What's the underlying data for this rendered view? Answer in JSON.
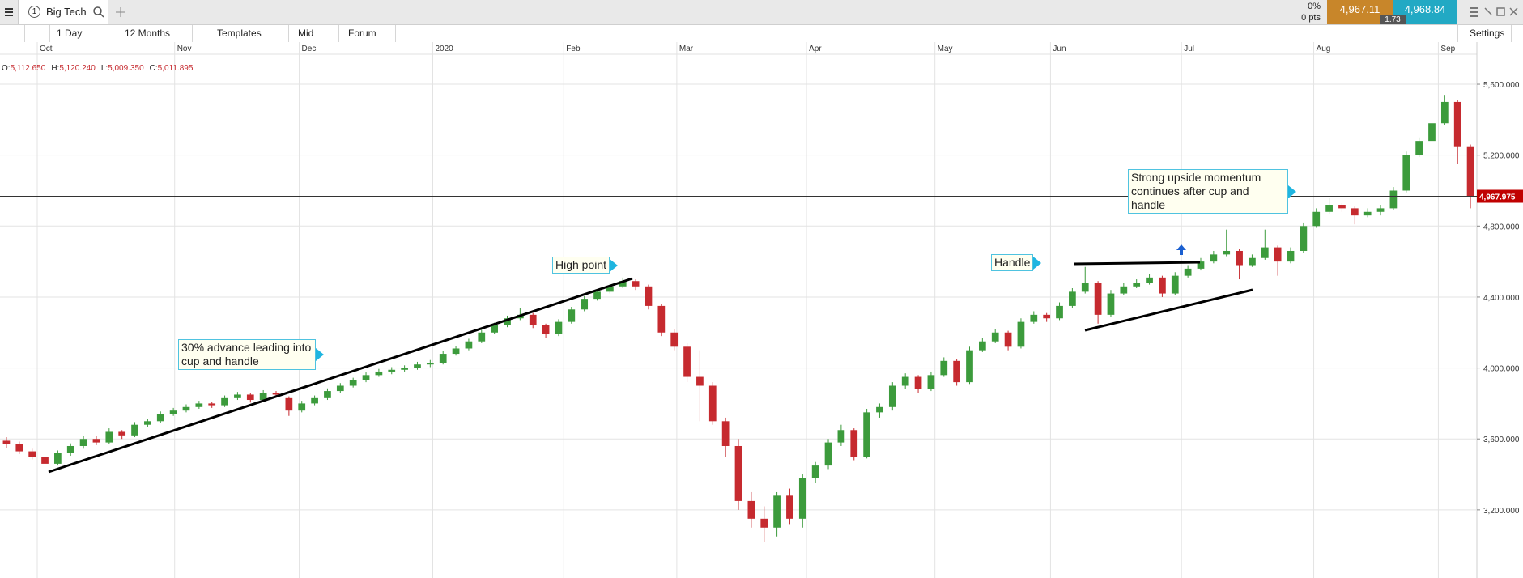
{
  "toolbar": {
    "tab_number": "1",
    "tab_title": "Big Tech",
    "change_pct": "0%",
    "change_pts": "0 pts",
    "sell": "4,967.11",
    "spread": "1.73",
    "buy": "4,968.84",
    "interval": "1 Day",
    "range": "12 Months",
    "templates": "Templates",
    "price_type": "Mid",
    "forum": "Forum",
    "settings": "Settings"
  },
  "ohlc_header": [
    {
      "label": "O:",
      "value": "5,112.650"
    },
    {
      "label": "H:",
      "value": "5,120.240"
    },
    {
      "label": "L:",
      "value": "5,009.350"
    },
    {
      "label": "C:",
      "value": "5,011.895"
    }
  ],
  "chart_data": {
    "type": "candlestick",
    "up_color": "#3c9b3c",
    "down_color": "#c62a2f",
    "grid": true,
    "xlim": [
      -0.5,
      114.5
    ],
    "xticks": [
      {
        "value": 2.4,
        "label": "Oct"
      },
      {
        "value": 13.1,
        "label": "Nov"
      },
      {
        "value": 22.8,
        "label": "Dec"
      },
      {
        "value": 33.2,
        "label": "2020"
      },
      {
        "value": 43.4,
        "label": "Feb"
      },
      {
        "value": 52.2,
        "label": "Mar"
      },
      {
        "value": 62.3,
        "label": "Apr"
      },
      {
        "value": 72.3,
        "label": "May"
      },
      {
        "value": 81.3,
        "label": "Jun"
      },
      {
        "value": 91.5,
        "label": "Jul"
      },
      {
        "value": 101.8,
        "label": "Aug"
      },
      {
        "value": 111.5,
        "label": "Sep"
      }
    ],
    "ylim": [
      2816,
      5769
    ],
    "yticks": [
      {
        "value": 3200,
        "label": "3,200.000"
      },
      {
        "value": 3600,
        "label": "3,600.000"
      },
      {
        "value": 4000,
        "label": "4,000.000"
      },
      {
        "value": 4400,
        "label": "4,400.000"
      },
      {
        "value": 4800,
        "label": "4,800.000"
      },
      {
        "value": 5200,
        "label": "5,200.000"
      },
      {
        "value": 5600,
        "label": "5,600.000"
      }
    ],
    "last_price": {
      "value": 4967.975,
      "label": "4,967.975"
    },
    "annotations": [
      "30% advance leading into cup and handle",
      "High point",
      "Handle",
      "Strong upside momentum continues after cup and handle"
    ],
    "ohlc": [
      [
        3590,
        3610,
        3550,
        3570
      ],
      [
        3570,
        3585,
        3515,
        3530
      ],
      [
        3530,
        3545,
        3485,
        3500
      ],
      [
        3500,
        3510,
        3430,
        3460
      ],
      [
        3460,
        3535,
        3450,
        3520
      ],
      [
        3520,
        3575,
        3505,
        3560
      ],
      [
        3560,
        3615,
        3545,
        3600
      ],
      [
        3600,
        3615,
        3565,
        3580
      ],
      [
        3580,
        3660,
        3570,
        3640
      ],
      [
        3640,
        3650,
        3600,
        3620
      ],
      [
        3620,
        3695,
        3610,
        3680
      ],
      [
        3680,
        3715,
        3665,
        3700
      ],
      [
        3700,
        3755,
        3690,
        3740
      ],
      [
        3740,
        3775,
        3730,
        3760
      ],
      [
        3760,
        3795,
        3750,
        3780
      ],
      [
        3780,
        3815,
        3770,
        3800
      ],
      [
        3800,
        3810,
        3775,
        3790
      ],
      [
        3790,
        3845,
        3780,
        3830
      ],
      [
        3830,
        3865,
        3820,
        3850
      ],
      [
        3850,
        3860,
        3805,
        3820
      ],
      [
        3820,
        3875,
        3810,
        3860
      ],
      [
        3860,
        3870,
        3835,
        3850
      ],
      [
        3830,
        3840,
        3730,
        3760
      ],
      [
        3760,
        3815,
        3750,
        3800
      ],
      [
        3800,
        3845,
        3790,
        3830
      ],
      [
        3830,
        3885,
        3820,
        3870
      ],
      [
        3870,
        3915,
        3860,
        3900
      ],
      [
        3900,
        3945,
        3890,
        3930
      ],
      [
        3930,
        3975,
        3920,
        3960
      ],
      [
        3960,
        3995,
        3950,
        3980
      ],
      [
        3980,
        4005,
        3965,
        3990
      ],
      [
        3990,
        4015,
        3980,
        4000
      ],
      [
        4000,
        4035,
        3990,
        4020
      ],
      [
        4020,
        4045,
        4005,
        4030
      ],
      [
        4030,
        4095,
        4020,
        4080
      ],
      [
        4080,
        4125,
        4070,
        4110
      ],
      [
        4110,
        4165,
        4100,
        4150
      ],
      [
        4150,
        4215,
        4140,
        4200
      ],
      [
        4200,
        4255,
        4190,
        4240
      ],
      [
        4240,
        4295,
        4230,
        4280
      ],
      [
        4280,
        4340,
        4270,
        4300
      ],
      [
        4300,
        4310,
        4225,
        4240
      ],
      [
        4240,
        4250,
        4170,
        4190
      ],
      [
        4190,
        4275,
        4180,
        4260
      ],
      [
        4260,
        4345,
        4250,
        4330
      ],
      [
        4330,
        4405,
        4320,
        4390
      ],
      [
        4390,
        4445,
        4380,
        4430
      ],
      [
        4430,
        4475,
        4420,
        4460
      ],
      [
        4460,
        4510,
        4450,
        4490
      ],
      [
        4490,
        4500,
        4440,
        4460
      ],
      [
        4460,
        4470,
        4330,
        4350
      ],
      [
        4350,
        4360,
        4180,
        4200
      ],
      [
        4200,
        4220,
        4100,
        4120
      ],
      [
        4120,
        4140,
        3920,
        3950
      ],
      [
        3950,
        4100,
        3700,
        3900
      ],
      [
        3900,
        3920,
        3680,
        3700
      ],
      [
        3700,
        3720,
        3500,
        3560
      ],
      [
        3560,
        3600,
        3200,
        3250
      ],
      [
        3250,
        3300,
        3100,
        3150
      ],
      [
        3150,
        3220,
        3020,
        3100
      ],
      [
        3100,
        3300,
        3050,
        3280
      ],
      [
        3280,
        3320,
        3120,
        3150
      ],
      [
        3150,
        3400,
        3100,
        3380
      ],
      [
        3380,
        3470,
        3350,
        3450
      ],
      [
        3450,
        3600,
        3430,
        3580
      ],
      [
        3580,
        3680,
        3560,
        3650
      ],
      [
        3650,
        3660,
        3480,
        3500
      ],
      [
        3500,
        3770,
        3490,
        3750
      ],
      [
        3750,
        3800,
        3720,
        3780
      ],
      [
        3780,
        3920,
        3760,
        3900
      ],
      [
        3900,
        3970,
        3880,
        3950
      ],
      [
        3950,
        3960,
        3860,
        3880
      ],
      [
        3880,
        3980,
        3870,
        3960
      ],
      [
        3960,
        4060,
        3950,
        4040
      ],
      [
        4040,
        4050,
        3900,
        3920
      ],
      [
        3920,
        4120,
        3910,
        4100
      ],
      [
        4100,
        4170,
        4090,
        4150
      ],
      [
        4150,
        4220,
        4140,
        4200
      ],
      [
        4200,
        4210,
        4100,
        4120
      ],
      [
        4120,
        4280,
        4110,
        4260
      ],
      [
        4260,
        4320,
        4250,
        4300
      ],
      [
        4300,
        4310,
        4260,
        4280
      ],
      [
        4280,
        4370,
        4270,
        4350
      ],
      [
        4350,
        4450,
        4340,
        4430
      ],
      [
        4430,
        4570,
        4420,
        4480
      ],
      [
        4480,
        4490,
        4250,
        4300
      ],
      [
        4300,
        4440,
        4290,
        4420
      ],
      [
        4420,
        4480,
        4410,
        4460
      ],
      [
        4460,
        4500,
        4450,
        4480
      ],
      [
        4480,
        4530,
        4470,
        4510
      ],
      [
        4510,
        4520,
        4400,
        4420
      ],
      [
        4420,
        4540,
        4410,
        4520
      ],
      [
        4520,
        4580,
        4510,
        4560
      ],
      [
        4560,
        4620,
        4550,
        4600
      ],
      [
        4600,
        4660,
        4590,
        4640
      ],
      [
        4640,
        4780,
        4630,
        4660
      ],
      [
        4660,
        4670,
        4500,
        4580
      ],
      [
        4580,
        4640,
        4570,
        4620
      ],
      [
        4620,
        4780,
        4610,
        4680
      ],
      [
        4680,
        4690,
        4520,
        4600
      ],
      [
        4600,
        4680,
        4590,
        4660
      ],
      [
        4660,
        4820,
        4650,
        4800
      ],
      [
        4800,
        4900,
        4790,
        4880
      ],
      [
        4880,
        4960,
        4870,
        4920
      ],
      [
        4920,
        4930,
        4880,
        4900
      ],
      [
        4900,
        4910,
        4810,
        4860
      ],
      [
        4860,
        4900,
        4850,
        4880
      ],
      [
        4880,
        4920,
        4860,
        4900
      ],
      [
        4900,
        5020,
        4890,
        5000
      ],
      [
        5000,
        5220,
        4990,
        5200
      ],
      [
        5200,
        5300,
        5190,
        5280
      ],
      [
        5280,
        5400,
        5270,
        5380
      ],
      [
        5380,
        5540,
        5370,
        5500
      ],
      [
        5500,
        5510,
        5150,
        5250
      ],
      [
        5250,
        5260,
        4900,
        4968
      ]
    ]
  }
}
